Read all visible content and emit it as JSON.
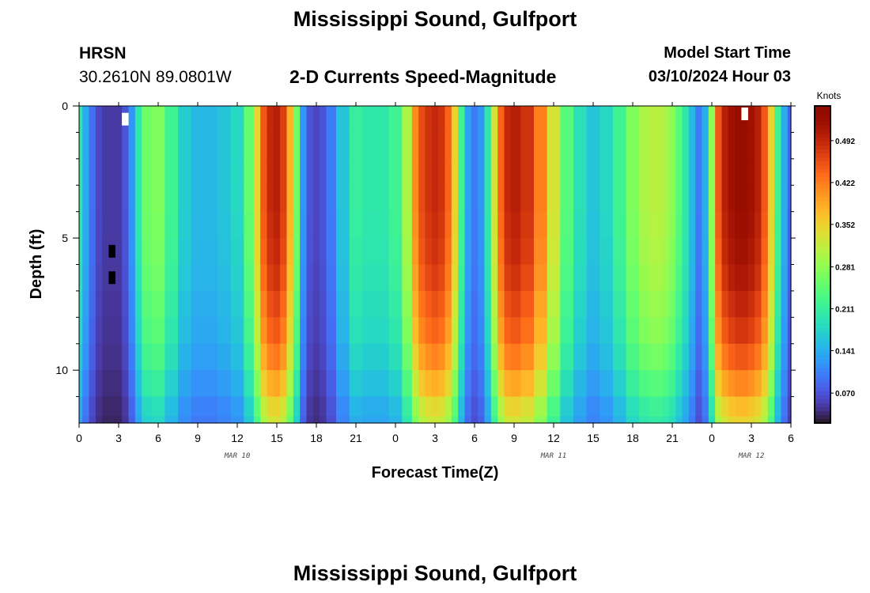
{
  "header": {
    "title": "Mississippi Sound, Gulfport",
    "station_id": "HRSN",
    "station_coords": "30.2610N  89.0801W",
    "subtitle": "2-D Currents Speed-Magnitude",
    "model_start_label": "Model Start Time",
    "model_start_value": "03/10/2024 Hour 03",
    "footer_title": "Mississippi Sound, Gulfport"
  },
  "chart_data": {
    "type": "heatmap",
    "title": "Mississippi Sound, Gulfport",
    "subtitle": "2-D Currents Speed-Magnitude",
    "xlabel": "Forecast Time(Z)",
    "ylabel": "Depth (ft)",
    "x_range_hours": [
      0,
      54
    ],
    "x_ticks": [
      "0",
      "3",
      "6",
      "9",
      "12",
      "15",
      "18",
      "21",
      "0",
      "3",
      "6",
      "9",
      "12",
      "15",
      "18",
      "21",
      "0",
      "3",
      "6"
    ],
    "date_labels": [
      "MAR 10",
      "MAR 11",
      "MAR 12"
    ],
    "y_range_ft": [
      0,
      12
    ],
    "y_ticks": [
      "0",
      "5",
      "10"
    ],
    "y_inverted": true,
    "colorbar": {
      "label": "Knots",
      "range": [
        0.02,
        0.55
      ],
      "ticks": [
        "0.070",
        "0.141",
        "0.211",
        "0.281",
        "0.352",
        "0.422",
        "0.492"
      ]
    },
    "depth_ft": [
      0,
      0.5,
      1.5,
      2.5,
      3.5,
      4.5,
      5.5,
      6.5,
      7.5,
      8.5,
      9.5,
      10.5,
      11.5,
      12
    ],
    "hours": [
      0,
      0.5,
      1,
      1.5,
      2,
      2.5,
      3,
      3.5,
      4,
      4.5,
      5,
      6,
      7,
      8,
      9,
      10,
      11,
      12,
      13,
      13.5,
      14,
      14.5,
      15,
      15.5,
      16,
      16.5,
      17,
      17.5,
      18,
      18.5,
      19,
      20,
      21,
      22,
      23,
      24,
      25,
      25.5,
      26,
      26.5,
      27,
      27.5,
      28,
      28.5,
      29,
      29.5,
      30,
      30.5,
      31,
      31.5,
      32,
      32.5,
      33,
      34,
      35,
      36,
      37,
      38,
      39,
      40,
      41,
      42,
      43,
      43.5,
      44,
      44.5,
      45,
      45.5,
      46,
      46.5,
      47,
      47.5,
      48,
      48.5,
      49,
      49.5,
      50,
      50.5,
      51,
      51.5,
      52,
      52.5,
      53,
      53.5,
      54
    ],
    "surface_speed_knots": [
      0.2,
      0.14,
      0.09,
      0.06,
      0.05,
      0.05,
      0.05,
      0.07,
      0.12,
      0.2,
      0.26,
      0.27,
      0.22,
      0.17,
      0.15,
      0.15,
      0.16,
      0.18,
      0.25,
      0.35,
      0.45,
      0.49,
      0.5,
      0.47,
      0.38,
      0.26,
      0.12,
      0.07,
      0.06,
      0.07,
      0.1,
      0.16,
      0.21,
      0.2,
      0.2,
      0.22,
      0.3,
      0.41,
      0.46,
      0.48,
      0.49,
      0.48,
      0.44,
      0.35,
      0.22,
      0.13,
      0.1,
      0.12,
      0.2,
      0.33,
      0.44,
      0.49,
      0.5,
      0.48,
      0.42,
      0.33,
      0.24,
      0.19,
      0.16,
      0.18,
      0.22,
      0.27,
      0.3,
      0.31,
      0.31,
      0.3,
      0.28,
      0.24,
      0.2,
      0.15,
      0.1,
      0.14,
      0.28,
      0.45,
      0.5,
      0.52,
      0.53,
      0.53,
      0.52,
      0.5,
      0.45,
      0.35,
      0.22,
      0.14,
      0.08
    ],
    "depth_profile_factor": [
      1.0,
      1.0,
      1.0,
      1.0,
      1.0,
      0.99,
      0.98,
      0.96,
      0.93,
      0.9,
      0.85,
      0.78,
      0.7,
      0.66
    ],
    "marked_cells": [
      {
        "hour": 3.5,
        "depth_ft": 0.5,
        "color": "#ffffff"
      },
      {
        "hour": 50.5,
        "depth_ft": 0.3,
        "color": "#ffffff"
      },
      {
        "hour": 2.5,
        "depth_ft": 5.5,
        "color": "#000000"
      },
      {
        "hour": 2.5,
        "depth_ft": 6.5,
        "color": "#000000"
      }
    ]
  }
}
